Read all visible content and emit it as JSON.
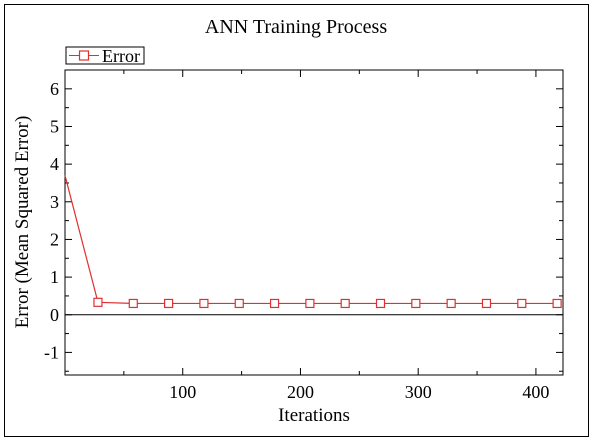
{
  "chart_data": {
    "type": "line",
    "title": "ANN Training Process",
    "xlabel": "Iterations",
    "ylabel": "Error (Mean Squared Error)",
    "xlim": [
      0,
      423
    ],
    "ylim": [
      -1.6,
      6.5
    ],
    "x_ticks": [
      100,
      200,
      300,
      400
    ],
    "y_ticks": [
      -1,
      0,
      1,
      2,
      3,
      4,
      5,
      6
    ],
    "grid": false,
    "zero_line": true,
    "legend_position": "top-left",
    "series": [
      {
        "name": "Error",
        "color": "#e03030",
        "marker": "square",
        "x": [
          0,
          28,
          58,
          88,
          118,
          148,
          178,
          208,
          238,
          268,
          298,
          328,
          358,
          388,
          418
        ],
        "y": [
          3.7,
          0.33,
          0.3,
          0.3,
          0.3,
          0.3,
          0.3,
          0.3,
          0.3,
          0.3,
          0.3,
          0.3,
          0.3,
          0.3,
          0.3
        ],
        "marker_indices": [
          1,
          2,
          3,
          4,
          5,
          6,
          7,
          8,
          9,
          10,
          11,
          12,
          13,
          14
        ]
      }
    ]
  }
}
